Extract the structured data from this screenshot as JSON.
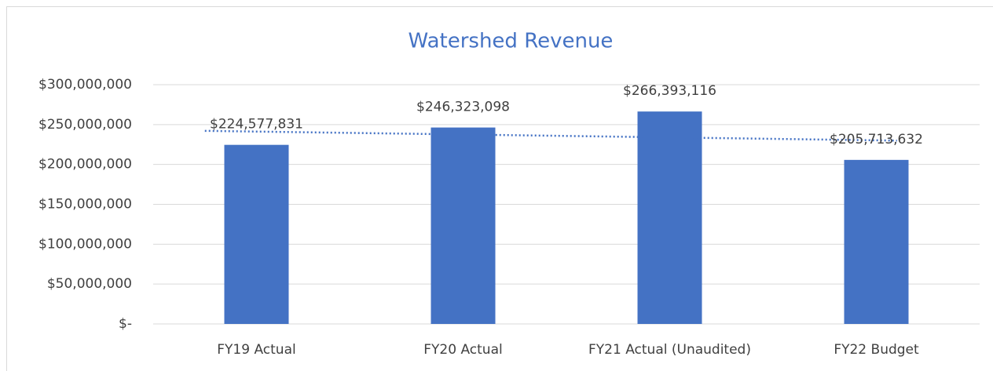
{
  "chart_data": {
    "type": "bar",
    "title": "Watershed Revenue",
    "categories": [
      "FY19 Actual",
      "FY20 Actual",
      "FY21 Actual (Unaudited)",
      "FY22 Budget"
    ],
    "values": [
      224577831,
      246323098,
      266393116,
      205713632
    ],
    "value_labels": [
      "$224,577,831",
      "$246,323,098",
      "$266,393,116",
      "$205,713,632"
    ],
    "color": "#4472c4",
    "ylim": [
      0,
      300000000
    ],
    "yticks": [
      {
        "value": 0,
        "label": "$-"
      },
      {
        "value": 50000000,
        "label": "$50,000,000"
      },
      {
        "value": 100000000,
        "label": "$100,000,000"
      },
      {
        "value": 150000000,
        "label": "$150,000,000"
      },
      {
        "value": 200000000,
        "label": "$200,000,000"
      },
      {
        "value": 250000000,
        "label": "$250,000,000"
      },
      {
        "value": 300000000,
        "label": "$300,000,000"
      }
    ],
    "grid": true,
    "trendline": "linear",
    "trendline_color": "#4472c4"
  }
}
